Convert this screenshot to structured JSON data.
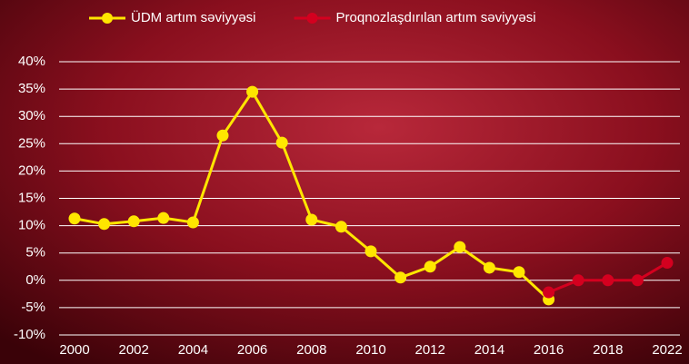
{
  "chart_data": {
    "type": "line",
    "categories": [
      "2000",
      null,
      "2002",
      null,
      "2004",
      null,
      "2006",
      null,
      "2008",
      null,
      "2010",
      null,
      "2012",
      null,
      "2014",
      null,
      "2016",
      null,
      "2018",
      null,
      "2022"
    ],
    "series": [
      {
        "name": "ÜDM artım səviyyəsi",
        "color": "#ffe600",
        "values": [
          11.3,
          10.3,
          10.8,
          11.4,
          10.6,
          26.5,
          34.5,
          25.2,
          11.1,
          9.8,
          5.3,
          0.5,
          2.5,
          6.1,
          2.3,
          1.5,
          -3.5,
          null,
          null,
          null,
          null
        ]
      },
      {
        "name": "Proqnozlaşdırılan artım səviyyəsi",
        "color": "#d4001f",
        "values": [
          null,
          null,
          null,
          null,
          null,
          null,
          null,
          null,
          null,
          null,
          null,
          null,
          null,
          null,
          null,
          null,
          -2.2,
          0,
          0,
          0,
          3.2
        ]
      }
    ],
    "ylim": [
      -10,
      40
    ],
    "yticks": [
      {
        "value": -10,
        "label": "-10%"
      },
      {
        "value": -5,
        "label": "-5%"
      },
      {
        "value": 0,
        "label": "0%"
      },
      {
        "value": 5,
        "label": "5%"
      },
      {
        "value": 10,
        "label": "10%"
      },
      {
        "value": 15,
        "label": "15%"
      },
      {
        "value": 20,
        "label": "20%"
      },
      {
        "value": 25,
        "label": "25%"
      },
      {
        "value": 30,
        "label": "30%"
      },
      {
        "value": 35,
        "label": "35%"
      },
      {
        "value": 40,
        "label": "40%"
      }
    ],
    "grid": true
  }
}
